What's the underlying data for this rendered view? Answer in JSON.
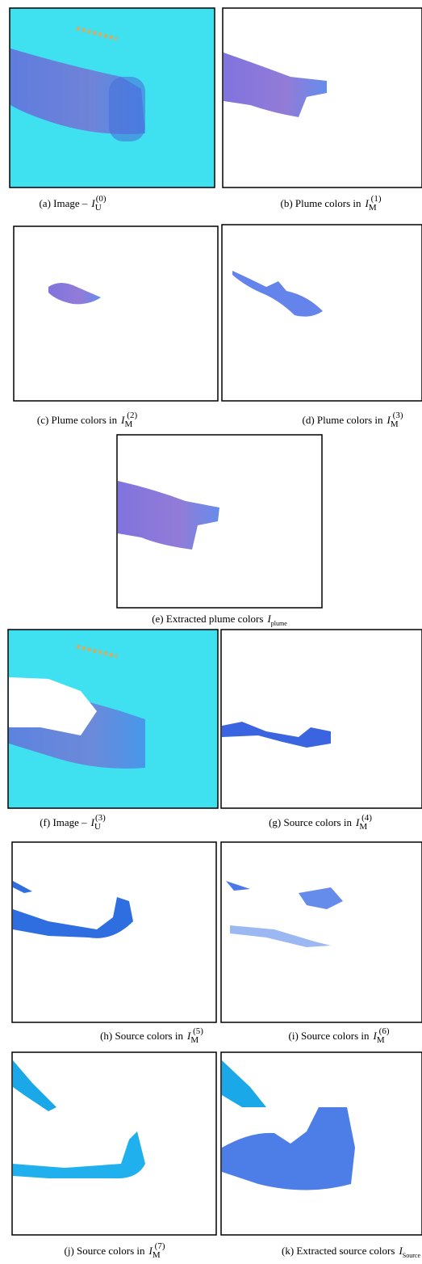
{
  "figure": {
    "panels": [
      {
        "label": "(a) Image –",
        "symbol": "I",
        "subscript": "U",
        "superscript": "(0)"
      },
      {
        "label": "(b)  Plume colors in",
        "symbol": "I",
        "subscript": "M",
        "superscript": "(1)"
      },
      {
        "label": "(c) Plume colors in",
        "symbol": "I",
        "subscript": "M",
        "superscript": "(2)"
      },
      {
        "label": "(d) Plume colors in",
        "symbol": "I",
        "subscript": "M",
        "superscript": "(3)"
      },
      {
        "label": "(e) Extracted plume colors",
        "symbol": "I",
        "subscript": "plume"
      },
      {
        "label": "(f) Image –",
        "symbol": "I",
        "subscript": "U",
        "superscript": "(3)"
      },
      {
        "label": "(g) Source colors in",
        "symbol": "I",
        "subscript": "M",
        "superscript": "(4)"
      },
      {
        "label": "(h) Source colors in",
        "symbol": "I",
        "subscript": "M",
        "superscript": "(5)"
      },
      {
        "label": "(i) Source colors in",
        "symbol": "I",
        "subscript": "M",
        "superscript": "(6)"
      },
      {
        "label": "(j) Source colors in",
        "symbol": "I",
        "subscript": "M",
        "superscript": "(7)"
      },
      {
        "label": "(k) Extracted source colors",
        "symbol": "I",
        "subscript": "Source"
      }
    ]
  }
}
